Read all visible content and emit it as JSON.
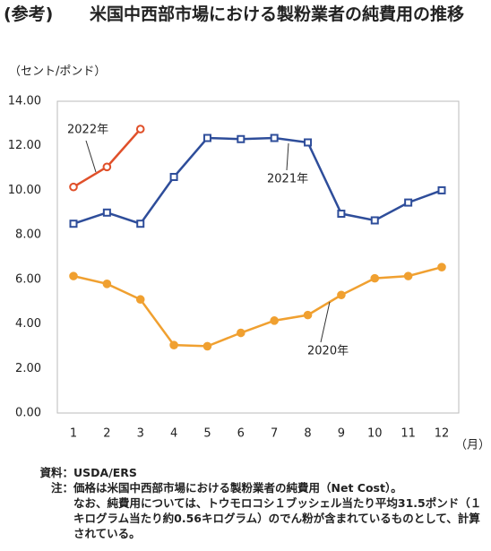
{
  "chart_data": {
    "type": "line",
    "title_prefix": "(参考)",
    "title": "米国中西部市場における製粉業者の純費用の推移",
    "y_label": "（セント/ポンド）",
    "x_label": "（月）",
    "categories": [
      "1",
      "2",
      "3",
      "4",
      "5",
      "6",
      "7",
      "8",
      "9",
      "10",
      "11",
      "12"
    ],
    "series": [
      {
        "name": "2020年",
        "color": "#f0a030",
        "marker": "circle",
        "marker_fill": "#f0a030",
        "values": [
          6.15,
          5.8,
          5.1,
          3.05,
          3.0,
          3.6,
          4.15,
          4.4,
          5.3,
          6.05,
          6.15,
          6.55
        ]
      },
      {
        "name": "2021年",
        "color": "#2e4d9a",
        "marker": "square",
        "marker_fill": "#ffffff",
        "values": [
          8.5,
          9.0,
          8.5,
          10.6,
          12.35,
          12.3,
          12.35,
          12.15,
          8.95,
          8.65,
          9.45,
          10.0
        ]
      },
      {
        "name": "2022年",
        "color": "#e0502a",
        "marker": "circle",
        "marker_fill": "#ffffff",
        "values": [
          10.15,
          11.05,
          12.75,
          null,
          null,
          null,
          null,
          null,
          null,
          null,
          null,
          null
        ]
      }
    ],
    "ylim": [
      0,
      14
    ],
    "yticks": [
      {
        "value": 0,
        "label": "0.00"
      },
      {
        "value": 2,
        "label": "2.00"
      },
      {
        "value": 4,
        "label": "4.00"
      },
      {
        "value": 6,
        "label": "6.00"
      },
      {
        "value": 8,
        "label": "8.00"
      },
      {
        "value": 10,
        "label": "10.00"
      },
      {
        "value": 12,
        "label": "12.00"
      },
      {
        "value": 14,
        "label": "14.00"
      }
    ],
    "grid": false,
    "notes": [
      {
        "label": "資料：",
        "text": [
          "USDA/ERS"
        ]
      },
      {
        "label": "注：",
        "text": [
          "価格は米国中西部市場における製粉業者の純費用（Net Cost）。",
          "なお、純費用については、トウモロコシ１ブッシェル当たり平均31.5ポンド（１キログラム当たり約0.56キログラム）のでん粉が含まれているものとして、計算されている。"
        ]
      }
    ]
  }
}
